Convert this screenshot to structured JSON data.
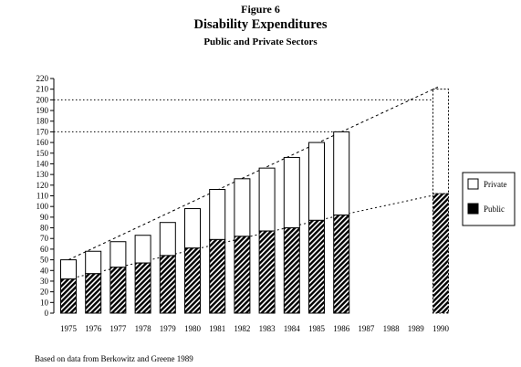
{
  "figure_label": "Figure  6",
  "title": "Disability Expenditures",
  "subtitle": "Public and Private Sectors",
  "source_note": "Based on data from Berkowitz and Greene 1989",
  "chart_data": {
    "type": "bar",
    "stacked": true,
    "categories": [
      "1975",
      "1976",
      "1977",
      "1978",
      "1979",
      "1980",
      "1981",
      "1982",
      "1983",
      "1984",
      "1985",
      "1986",
      "1987",
      "1988",
      "1989",
      "1990"
    ],
    "series": [
      {
        "name": "Public",
        "pattern": "diagonal-hatch",
        "values": [
          32,
          37,
          43,
          47,
          54,
          61,
          69,
          72,
          77,
          80,
          87,
          92,
          null,
          null,
          null,
          112
        ]
      },
      {
        "name": "Private",
        "pattern": "white",
        "values": [
          18,
          21,
          24,
          26,
          31,
          37,
          47,
          54,
          59,
          66,
          73,
          78,
          null,
          null,
          null,
          98
        ]
      }
    ],
    "projected_category": "1990",
    "reference_lines": [
      200,
      170
    ],
    "ylim": [
      0,
      220
    ],
    "yticks": [
      0,
      10,
      20,
      30,
      40,
      50,
      60,
      70,
      80,
      90,
      100,
      110,
      120,
      130,
      140,
      150,
      160,
      170,
      180,
      190,
      200,
      210,
      220
    ],
    "legend": {
      "position": "right",
      "entries": [
        "Private",
        "Public"
      ]
    },
    "colors": {
      "private": "#ffffff",
      "public": "#000000",
      "axis": "#000000"
    }
  }
}
